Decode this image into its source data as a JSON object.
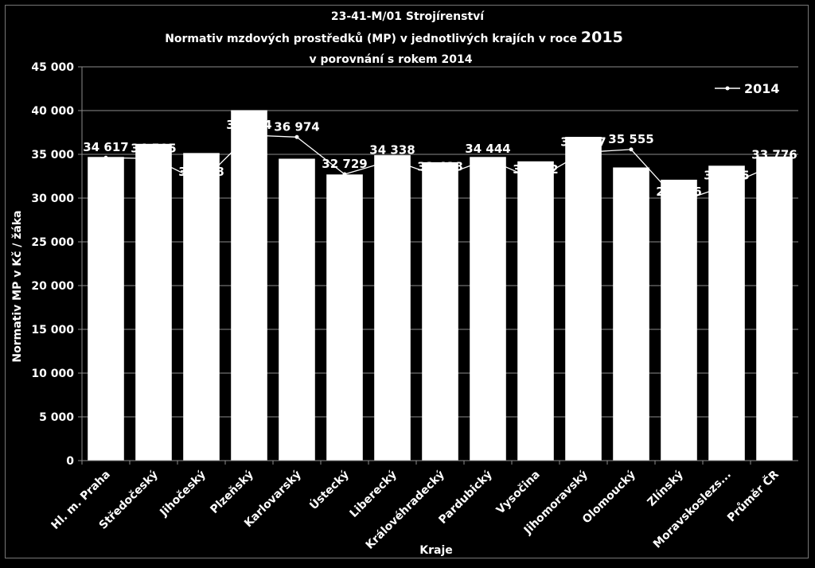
{
  "chart_data": {
    "type": "bar",
    "title_line1": "23-41-M/01 Strojírenství",
    "title_line2_prefix": "Normativ mzdových prostředků (MP) v jednotlivých krajích v roce ",
    "title_line2_year": "2015",
    "title_line3": "v porovnání s rokem 2014",
    "xlabel": "Kraje",
    "ylabel": "Normativ MP v Kč / žáka",
    "ylim": [
      0,
      45000
    ],
    "y_tick_step": 5000,
    "y_tick_labels": [
      "0",
      "5 000",
      "10 000",
      "15 000",
      "20 000",
      "25 000",
      "30 000",
      "35 000",
      "40 000",
      "45 000"
    ],
    "grid": true,
    "legend_position": "top-right",
    "categories": [
      "Hl. m. Praha",
      "Středočeský",
      "Jihočeský",
      "Plzeňský",
      "Karlovarský",
      "Ústecký",
      "Liberecký",
      "Královéhradecký",
      "Pardubický",
      "Vysočina",
      "Jihomoravský",
      "Olomoucký",
      "Zlínský",
      "Moravskoslezs...",
      "Průměr ČR"
    ],
    "series": [
      {
        "kind": "bar",
        "values": [
          34700,
          36200,
          35150,
          40050,
          34500,
          32700,
          34900,
          34100,
          34700,
          34200,
          37000,
          33500,
          32100,
          33700,
          34750
        ]
      },
      {
        "name": "2014",
        "kind": "line",
        "color": "#ffffff",
        "values": [
          34617,
          34505,
          31798,
          37194,
          36974,
          32729,
          34338,
          32428,
          34444,
          32072,
          35227,
          35555,
          29556,
          31425,
          33776
        ],
        "labels": [
          "34 617",
          "34 505",
          "31 798",
          "37 194",
          "36 974",
          "32 729",
          "34 338",
          "32 428",
          "34 444",
          "32 072",
          "35 227",
          "35 555",
          "29 556",
          "31 425",
          "33 776"
        ]
      }
    ],
    "colors": {
      "background": "#000000",
      "bar": "#ffffff",
      "grid": "#8c8c8c",
      "text": "#ffffff"
    }
  }
}
